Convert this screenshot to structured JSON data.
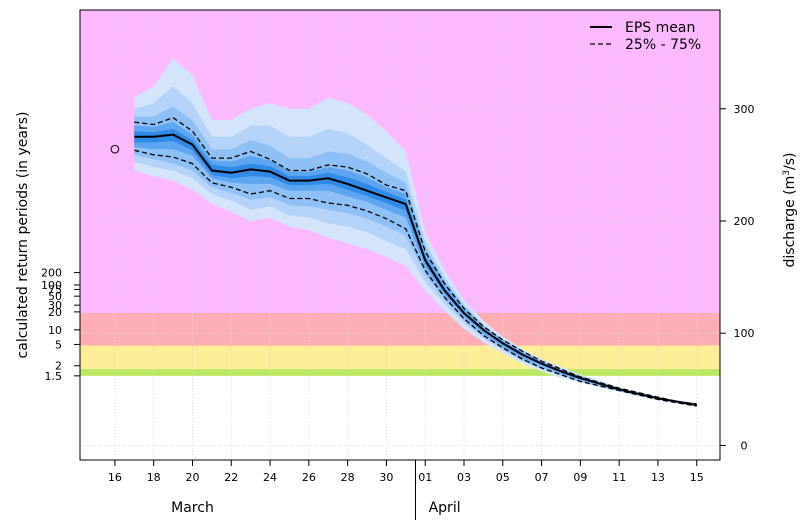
{
  "chart_data": {
    "type": "area",
    "title": "",
    "ylabel_left": "calculated return periods (in years)",
    "ylabel_right": "discharge (m³/s)",
    "ylabel_right_main": "discharge (m",
    "ylabel_right_sup": "3",
    "ylabel_right_tail": "/s)",
    "x_tick_labels": [
      "16",
      "18",
      "20",
      "22",
      "24",
      "26",
      "28",
      "30",
      "01",
      "03",
      "05",
      "07",
      "09",
      "11",
      "13",
      "15"
    ],
    "x_tick_days": [
      16,
      18,
      20,
      22,
      24,
      26,
      28,
      30,
      32,
      34,
      36,
      38,
      40,
      42,
      44,
      46
    ],
    "month_labels": [
      {
        "label": "March",
        "day": 20
      },
      {
        "label": "April",
        "day": 33
      }
    ],
    "month_divider_day": 31.5,
    "xlim": [
      14.2,
      47.2
    ],
    "ylim": [
      -13,
      388
    ],
    "right_ticks": [
      0,
      100,
      200,
      300
    ],
    "return_period_ticks": [
      {
        "label": "200",
        "q": 154
      },
      {
        "label": "100",
        "q": 143
      },
      {
        "label": "75",
        "q": 139
      },
      {
        "label": "50",
        "q": 133
      },
      {
        "label": "30",
        "q": 125
      },
      {
        "label": "20",
        "q": 119
      },
      {
        "label": "10",
        "q": 103
      },
      {
        "label": "5",
        "q": 90
      },
      {
        "label": "2",
        "q": 71
      },
      {
        "label": "1.5",
        "q": 62
      }
    ],
    "threshold_bands": [
      {
        "from": 118,
        "to": 388,
        "color": "#fdb9fd"
      },
      {
        "from": 89,
        "to": 118,
        "color": "#fcaeb4"
      },
      {
        "from": 68,
        "to": 89,
        "color": "#fbee97"
      },
      {
        "from": 62,
        "to": 68,
        "color": "#bde862"
      }
    ],
    "observed": {
      "x": 16,
      "y": 264
    },
    "x": [
      17,
      18,
      19,
      20,
      21,
      22,
      23,
      24,
      25,
      26,
      27,
      28,
      29,
      30,
      31,
      32,
      33,
      34,
      35,
      36,
      37,
      38,
      39,
      40,
      41,
      42,
      43,
      44,
      45,
      46
    ],
    "series": [
      {
        "name": "EPS mean",
        "style": "solid",
        "values": [
          275,
          275,
          277,
          268,
          245,
          243,
          246,
          244,
          236,
          236,
          238,
          233,
          227,
          221,
          215,
          165,
          138,
          118,
          103,
          91,
          81,
          73,
          66,
          60,
          55,
          50,
          46,
          42,
          39,
          36
        ]
      },
      {
        "name": "25% - 75%",
        "style": "dashed",
        "part": "upper",
        "values": [
          288,
          286,
          292,
          280,
          256,
          256,
          262,
          255,
          245,
          245,
          250,
          248,
          242,
          232,
          227,
          173,
          144,
          122,
          106,
          94,
          84,
          75,
          68,
          61,
          56,
          51,
          47,
          43,
          39,
          37
        ]
      },
      {
        "name": "",
        "style": "dashed",
        "part": "lower",
        "values": [
          263,
          259,
          257,
          251,
          234,
          230,
          224,
          227,
          220,
          220,
          216,
          214,
          209,
          202,
          193,
          156,
          132,
          113,
          98,
          87,
          77,
          69,
          63,
          57,
          53,
          49,
          45,
          41,
          38,
          35
        ]
      }
    ],
    "envelope_bands": [
      {
        "color": "#d4e4fb",
        "upper": [
          310,
          320,
          345,
          330,
          290,
          290,
          300,
          305,
          300,
          300,
          310,
          305,
          295,
          280,
          262,
          190,
          156,
          130,
          111,
          97,
          86,
          77,
          70,
          63,
          58,
          52,
          48,
          44,
          40,
          38
        ],
        "lower": [
          245,
          240,
          236,
          228,
          215,
          208,
          200,
          203,
          195,
          192,
          185,
          180,
          175,
          168,
          160,
          138,
          120,
          104,
          92,
          82,
          73,
          66,
          60,
          56,
          52,
          48,
          44,
          40,
          37,
          35
        ]
      },
      {
        "color": "#b5d3f8",
        "upper": [
          300,
          305,
          320,
          305,
          275,
          275,
          285,
          285,
          275,
          275,
          282,
          278,
          268,
          256,
          244,
          182,
          150,
          126,
          108,
          95,
          85,
          76,
          69,
          62,
          57,
          51,
          47,
          43,
          40,
          37
        ],
        "lower": [
          253,
          248,
          245,
          238,
          224,
          218,
          210,
          213,
          205,
          203,
          198,
          195,
          190,
          182,
          175,
          146,
          126,
          109,
          95,
          85,
          75,
          68,
          62,
          57,
          52,
          48,
          44,
          41,
          38,
          35
        ]
      },
      {
        "color": "#8ebff5",
        "upper": [
          293,
          293,
          302,
          290,
          264,
          264,
          272,
          267,
          256,
          256,
          262,
          260,
          253,
          243,
          234,
          177,
          147,
          124,
          107,
          94,
          84,
          75,
          68,
          62,
          56,
          51,
          47,
          43,
          39,
          37
        ],
        "lower": [
          259,
          255,
          251,
          245,
          230,
          225,
          219,
          221,
          214,
          213,
          210,
          207,
          202,
          195,
          187,
          152,
          130,
          111,
          97,
          86,
          76,
          69,
          63,
          57,
          53,
          48,
          45,
          41,
          38,
          35
        ]
      },
      {
        "color": "#5da5f0",
        "upper": [
          285,
          284,
          288,
          277,
          254,
          253,
          258,
          254,
          244,
          244,
          248,
          245,
          239,
          230,
          224,
          172,
          143,
          121,
          105,
          93,
          83,
          74,
          67,
          61,
          56,
          51,
          46,
          42,
          39,
          37
        ],
        "lower": [
          266,
          264,
          264,
          258,
          238,
          234,
          233,
          233,
          227,
          227,
          227,
          222,
          217,
          210,
          203,
          159,
          134,
          115,
          100,
          88,
          78,
          71,
          64,
          58,
          54,
          49,
          45,
          41,
          38,
          35
        ]
      },
      {
        "color": "#2f8ae8",
        "upper": [
          280,
          279,
          282,
          272,
          250,
          248,
          251,
          249,
          240,
          240,
          243,
          239,
          233,
          226,
          219,
          168,
          140,
          119,
          104,
          92,
          82,
          73,
          66,
          60,
          55,
          50,
          46,
          42,
          39,
          36
        ],
        "lower": [
          270,
          270,
          271,
          263,
          241,
          238,
          240,
          239,
          232,
          232,
          233,
          228,
          222,
          216,
          209,
          162,
          136,
          117,
          102,
          90,
          80,
          72,
          65,
          59,
          54,
          49,
          45,
          41,
          38,
          36
        ]
      }
    ],
    "legend": {
      "position": "top-right",
      "entries": [
        "EPS mean",
        "25% - 75%"
      ]
    }
  }
}
